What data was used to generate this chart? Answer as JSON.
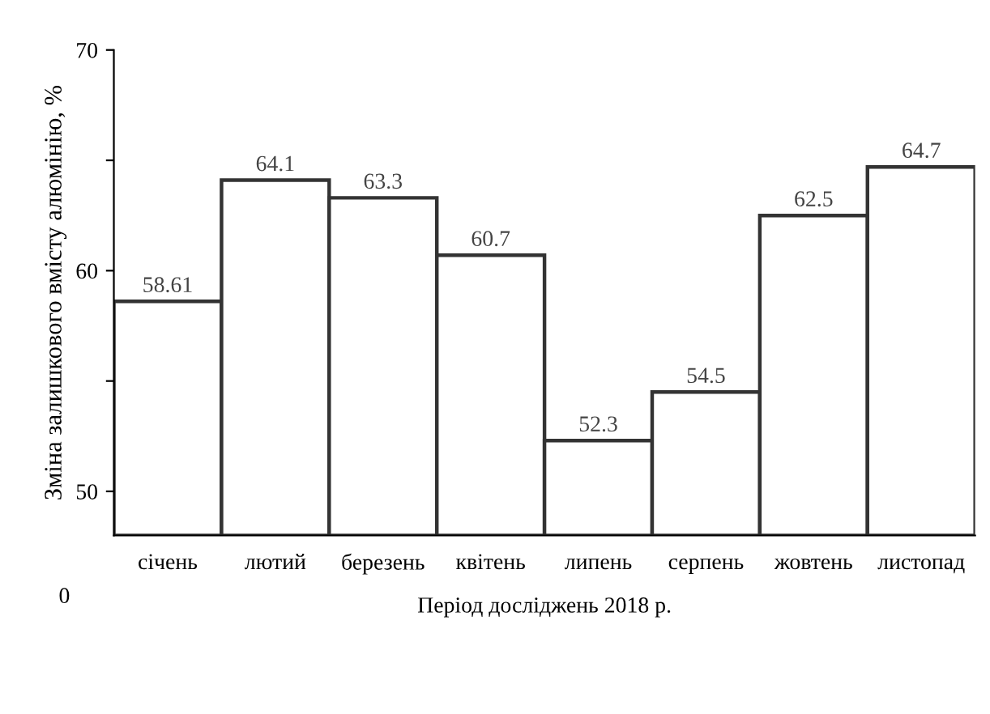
{
  "chart_data": {
    "type": "bar",
    "ylabel": "Зміна залишкового вмісту алюмінію, %",
    "xlabel": "Період досліджень 2018 р.",
    "categories": [
      "січень",
      "лютий",
      "березень",
      "квітень",
      "липень",
      "серпень",
      "жовтень",
      "листопад"
    ],
    "values": [
      58.61,
      64.1,
      63.3,
      60.7,
      52.3,
      54.5,
      62.5,
      64.7
    ],
    "color": "#ffffff",
    "data_labels": true,
    "ylim": [
      48,
      70
    ],
    "yticks": [
      50,
      {
        "value": 55,
        "label": null
      },
      60,
      {
        "value": 65,
        "label": null
      },
      70
    ],
    "annotations": [
      "0"
    ],
    "grid": false
  }
}
